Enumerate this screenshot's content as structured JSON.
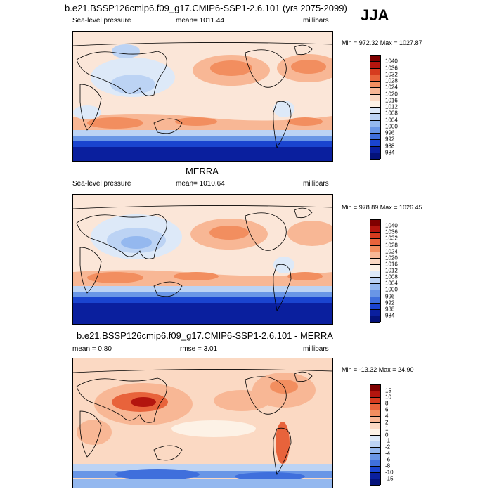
{
  "season": "JJA",
  "panels": [
    {
      "title": "b.e21.BSSP126cmip6.f09_g17.CMIP6-SSP1-2.6.101 (yrs 2075-2099)",
      "left_label": "Sea-level pressure",
      "center_label": "mean= 1011.44",
      "right_label": "millibars",
      "minmax": "Min = 972.32 Max = 1027.87",
      "colorbar": {
        "labels": [
          "1040",
          "1036",
          "1032",
          "1028",
          "1024",
          "1020",
          "1016",
          "1012",
          "1008",
          "1004",
          "1000",
          "996",
          "992",
          "988",
          "984"
        ],
        "colors": [
          "#7f0000",
          "#b3150e",
          "#d63b1f",
          "#e8633b",
          "#f28e5f",
          "#f8b795",
          "#fbd9c3",
          "#fdf2e6",
          "#dde9f8",
          "#bcd3f4",
          "#94b8ef",
          "#6996e6",
          "#3f6fdc",
          "#1a44cf",
          "#0a1f9e",
          "#04127a"
        ]
      }
    },
    {
      "title": "MERRA",
      "left_label": "Sea-level pressure",
      "center_label": "mean= 1010.64",
      "right_label": "millibars",
      "minmax": "Min = 978.89 Max = 1026.45",
      "colorbar": {
        "labels": [
          "1040",
          "1036",
          "1032",
          "1028",
          "1024",
          "1020",
          "1016",
          "1012",
          "1008",
          "1004",
          "1000",
          "996",
          "992",
          "988",
          "984"
        ],
        "colors": [
          "#7f0000",
          "#b3150e",
          "#d63b1f",
          "#e8633b",
          "#f28e5f",
          "#f8b795",
          "#fbd9c3",
          "#fdf2e6",
          "#dde9f8",
          "#bcd3f4",
          "#94b8ef",
          "#6996e6",
          "#3f6fdc",
          "#1a44cf",
          "#0a1f9e",
          "#04127a"
        ]
      }
    },
    {
      "title": "b.e21.BSSP126cmip6.f09_g17.CMIP6-SSP1-2.6.101 - MERRA",
      "left_label": "mean =   0.80",
      "center_label": "rmse =   3.01",
      "right_label": "millibars",
      "minmax": "Min = -13.32 Max =  24.90",
      "colorbar": {
        "labels": [
          "15",
          "10",
          "8",
          "6",
          "4",
          "2",
          "1",
          "0",
          "-1",
          "-2",
          "-4",
          "-6",
          "-8",
          "-10",
          "-15"
        ],
        "colors": [
          "#7f0000",
          "#b3150e",
          "#d63b1f",
          "#e8633b",
          "#f28e5f",
          "#f8b795",
          "#fbd9c3",
          "#fdf2e6",
          "#dde9f8",
          "#bcd3f4",
          "#94b8ef",
          "#6996e6",
          "#3f6fdc",
          "#1a44cf",
          "#0a1f9e",
          "#04127a"
        ]
      }
    }
  ],
  "chart_data": [
    {
      "type": "heatmap",
      "title": "b.e21.BSSP126cmip6.f09_g17.CMIP6-SSP1-2.6.101 (yrs 2075-2099)",
      "variable": "Sea-level pressure",
      "units": "millibars",
      "mean": 1011.44,
      "min": 972.32,
      "max": 1027.87,
      "levels": [
        984,
        988,
        992,
        996,
        1000,
        1004,
        1008,
        1012,
        1016,
        1020,
        1024,
        1028,
        1032,
        1036,
        1040
      ]
    },
    {
      "type": "heatmap",
      "title": "MERRA",
      "variable": "Sea-level pressure",
      "units": "millibars",
      "mean": 1010.64,
      "min": 978.89,
      "max": 1026.45,
      "levels": [
        984,
        988,
        992,
        996,
        1000,
        1004,
        1008,
        1012,
        1016,
        1020,
        1024,
        1028,
        1032,
        1036,
        1040
      ]
    },
    {
      "type": "heatmap",
      "title": "b.e21.BSSP126cmip6.f09_g17.CMIP6-SSP1-2.6.101 - MERRA",
      "units": "millibars",
      "mean": 0.8,
      "rmse": 3.01,
      "min": -13.32,
      "max": 24.9,
      "levels": [
        -15,
        -10,
        -8,
        -6,
        -4,
        -2,
        -1,
        0,
        1,
        2,
        4,
        6,
        8,
        10,
        15
      ]
    }
  ]
}
